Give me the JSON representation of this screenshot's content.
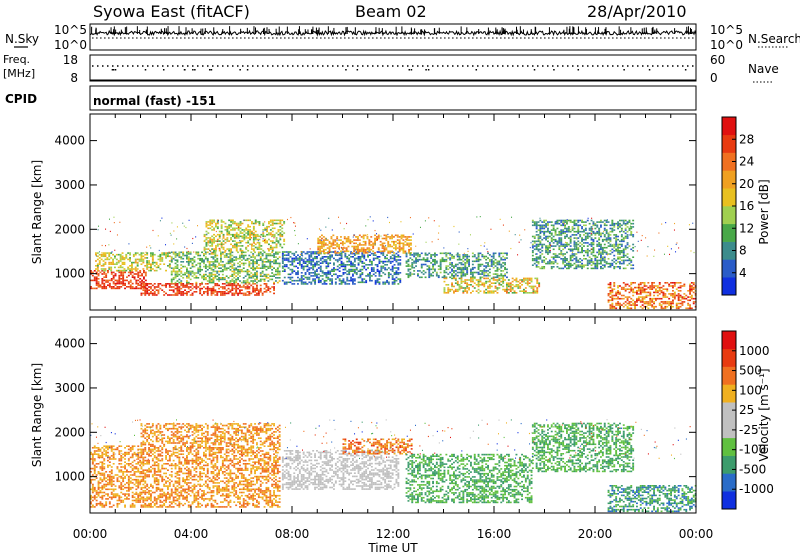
{
  "header": {
    "station": "Syowa East (fitACF)",
    "beam": "Beam 02",
    "date": "28/Apr/2010"
  },
  "noise_panel": {
    "left_label": "N.Sky",
    "right_label": "N.Search",
    "ticks_left": [
      "10^5",
      "10^0"
    ],
    "ticks_right": [
      "10^5",
      "10^0"
    ]
  },
  "freq_panel": {
    "left_label_1": "Freq.",
    "left_label_2": "[MHz]",
    "right_label": "Nave",
    "ticks_left": [
      "18",
      "8"
    ],
    "ticks_right": [
      "60",
      "0"
    ]
  },
  "cpid": {
    "label": "CPID",
    "mode": "normal (fast) -151"
  },
  "chart_data": [
    {
      "type": "heatmap",
      "name": "Power",
      "ylabel": "Slant Range [km]",
      "ylim": [
        180,
        4600
      ],
      "yticks": [
        "4000",
        "3000",
        "2000",
        "1000"
      ],
      "x_ticks": [
        "00:00",
        "04:00",
        "08:00",
        "12:00",
        "16:00",
        "20:00",
        "00:00"
      ],
      "colorbar": {
        "label": "Power [dB]",
        "levels": [
          4,
          8,
          12,
          16,
          20,
          24,
          28
        ],
        "tick_labels": [
          "4",
          "8",
          "12",
          "16",
          "20",
          "24",
          "28"
        ],
        "colors": [
          "#1030e0",
          "#2a5cc8",
          "#3c8c8c",
          "#48a848",
          "#a0d050",
          "#e8c020",
          "#f0a020",
          "#f07020",
          "#e83a10",
          "#e01010"
        ]
      },
      "regions": [
        {
          "t0": 0.0,
          "t1": 2.2,
          "r0": 650,
          "r1": 1050,
          "c0": 7,
          "c1": 9
        },
        {
          "t0": 0.2,
          "t1": 3.2,
          "r0": 1050,
          "r1": 1450,
          "c0": 3,
          "c1": 6
        },
        {
          "t0": 2.0,
          "t1": 7.3,
          "r0": 500,
          "r1": 780,
          "c0": 7,
          "c1": 9
        },
        {
          "t0": 3.2,
          "t1": 7.5,
          "r0": 780,
          "r1": 1500,
          "c0": 2,
          "c1": 5
        },
        {
          "t0": 4.5,
          "t1": 7.7,
          "r0": 1500,
          "r1": 2200,
          "c0": 3,
          "c1": 6
        },
        {
          "t0": 7.6,
          "t1": 12.3,
          "r0": 750,
          "r1": 1500,
          "c0": 0,
          "c1": 3
        },
        {
          "t0": 9.0,
          "t1": 12.7,
          "r0": 1450,
          "r1": 1850,
          "c0": 5,
          "c1": 7
        },
        {
          "t0": 12.5,
          "t1": 16.5,
          "r0": 900,
          "r1": 1450,
          "c0": 1,
          "c1": 4
        },
        {
          "t0": 14.0,
          "t1": 17.8,
          "r0": 550,
          "r1": 900,
          "c0": 3,
          "c1": 7
        },
        {
          "t0": 17.5,
          "t1": 21.5,
          "r0": 1100,
          "r1": 2200,
          "c0": 1,
          "c1": 4
        },
        {
          "t0": 20.5,
          "t1": 24.0,
          "r0": 200,
          "r1": 800,
          "c0": 5,
          "c1": 9
        }
      ]
    },
    {
      "type": "heatmap",
      "name": "Velocity",
      "ylabel": "Slant Range [km]",
      "xlabel": "Time UT",
      "ylim": [
        180,
        4600
      ],
      "yticks": [
        "4000",
        "3000",
        "2000",
        "1000"
      ],
      "x_ticks": [
        "00:00",
        "04:00",
        "08:00",
        "12:00",
        "16:00",
        "20:00",
        "00:00"
      ],
      "colorbar": {
        "label": "Velocity [m s⁻¹]",
        "levels": [
          1000,
          500,
          100,
          25,
          -25,
          -100,
          -500,
          -1000
        ],
        "tick_labels": [
          "1000",
          "500",
          "100",
          "25",
          "-25",
          "-100",
          "-500",
          "-1000"
        ],
        "colors": [
          "#1030e0",
          "#2a6cc8",
          "#3c9c6c",
          "#60c040",
          "#c0c0c0",
          "#c0c0c0",
          "#f0b020",
          "#f07020",
          "#e83a10",
          "#e01010"
        ]
      },
      "regions": [
        {
          "t0": 0.0,
          "t1": 2.0,
          "r0": 300,
          "r1": 1700,
          "c0": 6,
          "c1": 7
        },
        {
          "t0": 2.0,
          "t1": 7.5,
          "r0": 300,
          "r1": 2200,
          "c0": 6,
          "c1": 7
        },
        {
          "t0": 7.6,
          "t1": 12.2,
          "r0": 700,
          "r1": 1600,
          "c0": 4,
          "c1": 5
        },
        {
          "t0": 10.0,
          "t1": 12.7,
          "r0": 1500,
          "r1": 1850,
          "c0": 6,
          "c1": 8
        },
        {
          "t0": 12.5,
          "t1": 17.5,
          "r0": 400,
          "r1": 1500,
          "c0": 2,
          "c1": 3
        },
        {
          "t0": 17.5,
          "t1": 21.5,
          "r0": 1100,
          "r1": 2200,
          "c0": 2,
          "c1": 3
        },
        {
          "t0": 20.5,
          "t1": 24.0,
          "r0": 200,
          "r1": 800,
          "c0": 1,
          "c1": 3
        }
      ]
    }
  ]
}
